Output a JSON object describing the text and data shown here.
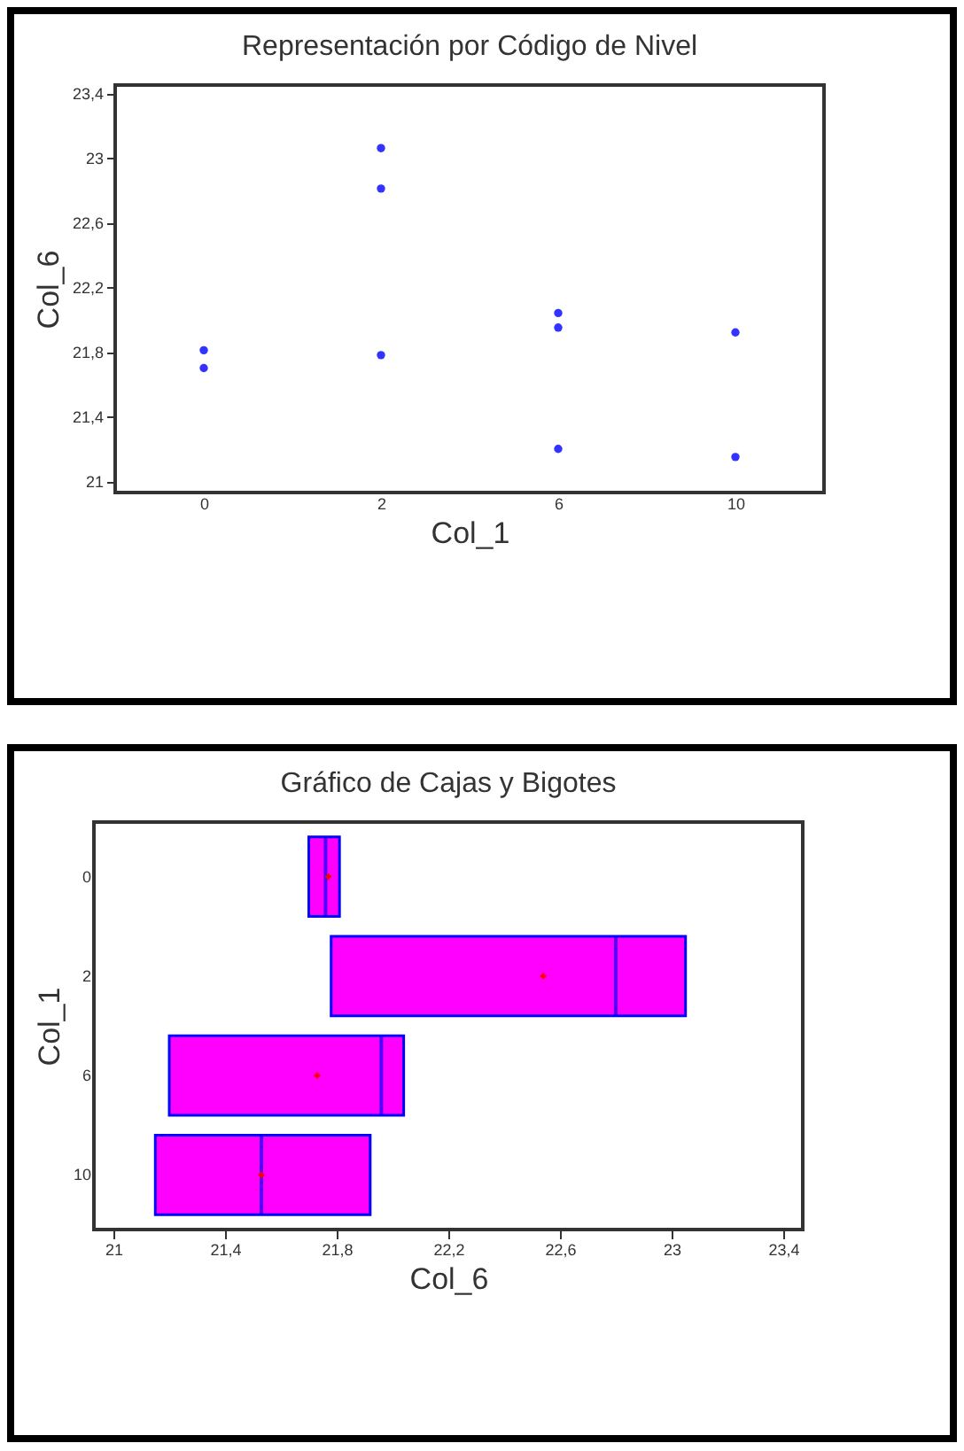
{
  "chart_data": [
    {
      "type": "scatter",
      "title": "Representación por Código de Nivel",
      "xlabel": "Col_1",
      "ylabel": "Col_6",
      "categories": [
        "0",
        "2",
        "6",
        "10"
      ],
      "marker": "circle",
      "series": [
        {
          "color": "#3333ff",
          "values": [
            21.81,
            23.06,
            22.04,
            21.92
          ]
        },
        {
          "color": "#3333ff",
          "values": [
            21.7,
            22.81,
            21.95,
            21.15
          ]
        },
        {
          "color": "#3333ff",
          "values": [
            null,
            21.78,
            21.2,
            null
          ]
        }
      ],
      "ylim": [
        20.93,
        23.45
      ],
      "yticks": [
        21,
        {
          "value": 21.4,
          "label": "21,4"
        },
        {
          "value": 21.8,
          "label": "21,8"
        },
        {
          "value": 22.2,
          "label": "22,2"
        },
        {
          "value": 22.6,
          "label": "22,6"
        },
        23,
        {
          "value": 23.4,
          "label": "23,4"
        }
      ]
    },
    {
      "type": "box",
      "orientation": "horizontal",
      "title": "Gráfico de Cajas y Bigotes",
      "xlabel": "Col_6",
      "ylabel": "Col_1",
      "categories": [
        "0",
        "2",
        "6",
        "10"
      ],
      "series": [
        {
          "color": "#ff00ff",
          "boxes": [
            {
              "low": 21.7,
              "q1": 21.7,
              "median": 21.76,
              "q3": 21.81,
              "high": 21.81,
              "mean": 21.77
            },
            {
              "low": 21.78,
              "q1": 21.78,
              "median": 22.8,
              "q3": 23.05,
              "high": 23.05,
              "mean": 22.54
            },
            {
              "low": 21.2,
              "q1": 21.2,
              "median": 21.96,
              "q3": 22.04,
              "high": 22.04,
              "mean": 21.73
            },
            {
              "low": 21.15,
              "q1": 21.15,
              "median": 21.53,
              "q3": 21.92,
              "high": 21.92,
              "mean": 21.53
            }
          ]
        }
      ],
      "xlim": [
        20.93,
        23.47
      ],
      "xticks": [
        21,
        {
          "value": 21.4,
          "label": "21,4"
        },
        {
          "value": 21.8,
          "label": "21,8"
        },
        {
          "value": 22.2,
          "label": "22,2"
        },
        {
          "value": 22.6,
          "label": "22,6"
        },
        23,
        {
          "value": 23.4,
          "label": "23,4"
        }
      ]
    }
  ]
}
